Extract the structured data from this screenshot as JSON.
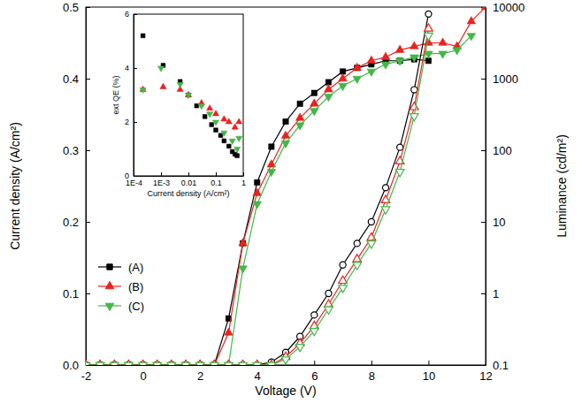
{
  "chart_data": [
    {
      "type": "line",
      "xlabel": "Voltage (V)",
      "ylabel": "Current density (A/cm²)",
      "y2label": "Luminance (cd/m²)",
      "log": "y2",
      "legend": "left",
      "xlim": [
        -2,
        12
      ],
      "xticks": [
        -2,
        0,
        2,
        4,
        6,
        8,
        10,
        12
      ],
      "ylim": [
        0,
        0.5
      ],
      "yticks": [
        {
          "value": 0,
          "label": "0.0"
        },
        0.1,
        0.2,
        0.3,
        0.4,
        0.5
      ],
      "y2lim": [
        0.1,
        10000
      ],
      "y2ticks": [
        0.1,
        1,
        10,
        100,
        1000,
        10000
      ],
      "x": [
        -2,
        -1.5,
        -1,
        -0.5,
        0,
        0.5,
        1,
        1.5,
        2,
        2.5,
        3,
        3.5,
        4,
        4.5,
        5,
        5.5,
        6,
        6.5,
        7,
        7.5,
        8,
        8.5,
        9,
        9.5,
        10,
        10.5,
        11,
        11.5,
        12
      ],
      "series": [
        {
          "name": "(A)",
          "color": "#000000",
          "marker": "square",
          "values": [
            0,
            0,
            0,
            0,
            0,
            0,
            0,
            0,
            0,
            0,
            0.065,
            0.17,
            0.255,
            0.305,
            0.34,
            0.365,
            0.38,
            0.395,
            0.41,
            0.415,
            0.42,
            0.425,
            0.425,
            0.427,
            0.425,
            null,
            null,
            null,
            null
          ]
        },
        {
          "name": "(B)",
          "color": "#e8231e",
          "marker": "triangle-up",
          "values": [
            0,
            0,
            0,
            0,
            0,
            0,
            0,
            0,
            0,
            0,
            0.045,
            0.17,
            0.24,
            0.28,
            0.32,
            0.345,
            0.365,
            0.385,
            0.4,
            0.415,
            0.425,
            0.43,
            0.44,
            0.445,
            0.45,
            0.45,
            0.445,
            0.48,
            0.5
          ]
        },
        {
          "name": "(C)",
          "color": "#45b649",
          "marker": "triangle-down",
          "values": [
            0,
            0,
            0,
            0,
            0,
            0,
            0,
            0,
            0,
            0,
            0,
            0.135,
            0.225,
            0.27,
            0.31,
            0.335,
            0.355,
            0.375,
            0.39,
            0.4,
            0.41,
            0.42,
            0.425,
            0.43,
            0.435,
            0.435,
            0.44,
            0.46,
            null
          ]
        },
        {
          "axis": "y2",
          "color": "#000000",
          "marker": "circle-open",
          "values": [
            0.1,
            0.1,
            0.1,
            0.1,
            0.1,
            0.1,
            0.1,
            0.1,
            0.1,
            0.1,
            0.1,
            0.1,
            0.1,
            0.11,
            0.15,
            0.25,
            0.5,
            1,
            2.5,
            5,
            10,
            30,
            110,
            700,
            8000,
            null,
            null,
            null,
            null
          ]
        },
        {
          "axis": "y2",
          "color": "#e8231e",
          "marker": "triangle-up-open",
          "values": [
            0.1,
            0.1,
            0.1,
            0.1,
            0.1,
            0.1,
            0.1,
            0.1,
            0.1,
            0.1,
            0.1,
            0.1,
            0.1,
            0.1,
            0.13,
            0.2,
            0.35,
            0.7,
            1.5,
            3,
            6,
            20,
            70,
            400,
            5000,
            null,
            null,
            null,
            null
          ]
        },
        {
          "axis": "y2",
          "color": "#45b649",
          "marker": "triangle-down-open",
          "values": [
            0.1,
            0.1,
            0.1,
            0.1,
            0.1,
            0.1,
            0.1,
            0.1,
            0.1,
            0.1,
            0.1,
            0.1,
            0.1,
            0.1,
            0.12,
            0.18,
            0.3,
            0.6,
            1.2,
            2.5,
            5,
            15,
            50,
            300,
            4000,
            null,
            null,
            null,
            null
          ]
        }
      ]
    },
    {
      "type": "scatter",
      "xlabel": "Current density (A/cm²)",
      "ylabel": "ext QE (%)",
      "log": "x",
      "xlim": [
        0.0001,
        1
      ],
      "xticks": [
        {
          "value": 0.0001,
          "label": "1E-4"
        },
        {
          "value": 0.001,
          "label": "1E-3"
        },
        0.01,
        0.1,
        1
      ],
      "ylim": [
        0,
        6
      ],
      "yticks": [
        0,
        2,
        4,
        6
      ],
      "series": [
        {
          "color": "#000000",
          "marker": "square",
          "x": [
            0.00022,
            0.0012,
            0.005,
            0.01,
            0.02,
            0.04,
            0.07,
            0.1,
            0.15,
            0.2,
            0.3,
            0.4,
            0.5,
            0.6
          ],
          "values": [
            5.2,
            4.1,
            3.5,
            3.0,
            2.6,
            2.2,
            1.9,
            1.7,
            1.5,
            1.3,
            1.1,
            0.9,
            0.8,
            0.75
          ]
        },
        {
          "color": "#e8231e",
          "marker": "triangle-up",
          "x": [
            0.00022,
            0.0012,
            0.005,
            0.01,
            0.03,
            0.06,
            0.1,
            0.2,
            0.3,
            0.5,
            0.7
          ],
          "values": [
            3.2,
            3.3,
            3.2,
            3.0,
            2.7,
            2.5,
            2.3,
            2.1,
            2.0,
            1.8,
            2.0
          ]
        },
        {
          "color": "#45b649",
          "marker": "triangle-down",
          "x": [
            0.00022,
            0.001,
            0.005,
            0.01,
            0.03,
            0.06,
            0.1,
            0.2,
            0.4,
            0.6,
            0.7
          ],
          "values": [
            3.2,
            4.0,
            3.4,
            3.0,
            2.6,
            2.3,
            2.0,
            1.6,
            1.3,
            1.0,
            1.4
          ]
        }
      ]
    }
  ]
}
